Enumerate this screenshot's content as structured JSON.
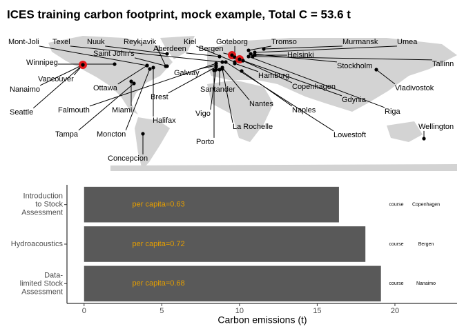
{
  "title": "ICES training carbon footprint, mock example, Total C = 53.6 t",
  "chart_data": [
    {
      "type": "map",
      "cities": [
        "Mont-Joli",
        "Texel",
        "Nuuk",
        "Reykjavik",
        "Kiel",
        "Aberdeen",
        "Bergen",
        "Goteborg",
        "Tromso",
        "Murmansk",
        "Umea",
        "Saint John's",
        "Helsinki",
        "Winnipeg",
        "Tallinn",
        "Stockholm",
        "Vancouver",
        "Galway",
        "Hamburg",
        "Nanaimo",
        "Ottawa",
        "Vladivostok",
        "Copenhagen",
        "Santander",
        "Gdynia",
        "Brest",
        "Nantes",
        "Seattle",
        "Falmouth",
        "Miami",
        "Naples",
        "Riga",
        "Vigo",
        "Halifax",
        "La Rochelle",
        "Tampa",
        "Moncton",
        "Lowestoft",
        "Wellington",
        "Porto",
        "Concepcion"
      ],
      "land_color": "#d3d3d3",
      "point_color": "#000000",
      "highlight_color": "#e31a1c"
    },
    {
      "type": "bar",
      "orientation": "horizontal",
      "categories": [
        "Introduction\nto Stock\nAssessment",
        "Hydroacoustics",
        "Data-\nlimited Stock\nAssessment"
      ],
      "values": [
        16.4,
        18.1,
        19.1
      ],
      "color": "#595959",
      "annotations": [
        "per capita=0.63",
        "per capita=0.72",
        "per capita=0.68"
      ],
      "annotation_color": "#e69f00",
      "notes": [
        [
          "course",
          "Copenhagen"
        ],
        [
          "course",
          "Bergen"
        ],
        [
          "course",
          "Nanaimo"
        ]
      ],
      "xlabel": "Carbon emissions (t)",
      "xlim": [
        -1.1,
        24
      ],
      "xticks": [
        0,
        5,
        10,
        15,
        20
      ]
    }
  ]
}
